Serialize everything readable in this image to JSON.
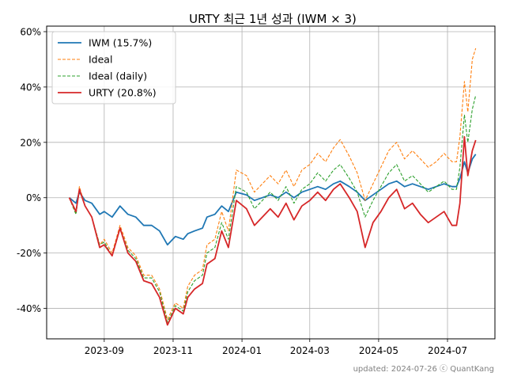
{
  "chart_data": {
    "type": "line",
    "title": "URTY 최근 1년 성과 (IWM × 3)",
    "xlabel": "",
    "ylabel": "",
    "x_tick_labels": [
      "2023-09",
      "2023-11",
      "2024-01",
      "2024-03",
      "2024-05",
      "2024-07"
    ],
    "y_tick_labels": [
      "-40%",
      "-20%",
      "0%",
      "20%",
      "40%",
      "60%"
    ],
    "ylim": [
      -51,
      62
    ],
    "grid": true,
    "legend_position": "upper-left",
    "series": [
      {
        "name": "IWM (15.7%)",
        "color": "#1f77b4",
        "linestyle": "solid",
        "points": [
          [
            "2023-08-01",
            0
          ],
          [
            "2023-08-07",
            -2
          ],
          [
            "2023-08-10",
            2
          ],
          [
            "2023-08-15",
            -1
          ],
          [
            "2023-08-21",
            -2
          ],
          [
            "2023-08-28",
            -6
          ],
          [
            "2023-09-01",
            -5
          ],
          [
            "2023-09-08",
            -7
          ],
          [
            "2023-09-15",
            -3
          ],
          [
            "2023-09-22",
            -6
          ],
          [
            "2023-09-29",
            -7
          ],
          [
            "2023-10-06",
            -10
          ],
          [
            "2023-10-13",
            -10
          ],
          [
            "2023-10-20",
            -12
          ],
          [
            "2023-10-27",
            -17
          ],
          [
            "2023-11-03",
            -14
          ],
          [
            "2023-11-10",
            -15
          ],
          [
            "2023-11-14",
            -13
          ],
          [
            "2023-11-20",
            -12
          ],
          [
            "2023-11-27",
            -11
          ],
          [
            "2023-12-01",
            -7
          ],
          [
            "2023-12-08",
            -6
          ],
          [
            "2023-12-14",
            -3
          ],
          [
            "2023-12-20",
            -5
          ],
          [
            "2023-12-27",
            2
          ],
          [
            "2024-01-05",
            1
          ],
          [
            "2024-01-12",
            -1
          ],
          [
            "2024-01-19",
            0
          ],
          [
            "2024-01-26",
            1
          ],
          [
            "2024-02-02",
            0
          ],
          [
            "2024-02-09",
            2
          ],
          [
            "2024-02-16",
            0
          ],
          [
            "2024-02-23",
            2
          ],
          [
            "2024-03-01",
            3
          ],
          [
            "2024-03-08",
            4
          ],
          [
            "2024-03-15",
            3
          ],
          [
            "2024-03-22",
            5
          ],
          [
            "2024-03-28",
            6
          ],
          [
            "2024-04-05",
            4
          ],
          [
            "2024-04-12",
            2
          ],
          [
            "2024-04-19",
            -1
          ],
          [
            "2024-04-26",
            1
          ],
          [
            "2024-05-03",
            3
          ],
          [
            "2024-05-10",
            5
          ],
          [
            "2024-05-17",
            6
          ],
          [
            "2024-05-24",
            4
          ],
          [
            "2024-05-31",
            5
          ],
          [
            "2024-06-07",
            4
          ],
          [
            "2024-06-14",
            3
          ],
          [
            "2024-06-21",
            4
          ],
          [
            "2024-06-28",
            5
          ],
          [
            "2024-07-05",
            4
          ],
          [
            "2024-07-09",
            4
          ],
          [
            "2024-07-12",
            7
          ],
          [
            "2024-07-16",
            13
          ],
          [
            "2024-07-19",
            9
          ],
          [
            "2024-07-23",
            14
          ],
          [
            "2024-07-26",
            15.7
          ]
        ]
      },
      {
        "name": "Ideal",
        "color": "#ff7f0e",
        "linestyle": "dashed",
        "points": [
          [
            "2023-08-01",
            0
          ],
          [
            "2023-08-07",
            -6
          ],
          [
            "2023-08-10",
            4
          ],
          [
            "2023-08-15",
            -3
          ],
          [
            "2023-08-21",
            -7
          ],
          [
            "2023-08-28",
            -17
          ],
          [
            "2023-09-01",
            -15
          ],
          [
            "2023-09-08",
            -20
          ],
          [
            "2023-09-15",
            -10
          ],
          [
            "2023-09-22",
            -18
          ],
          [
            "2023-09-29",
            -21
          ],
          [
            "2023-10-06",
            -28
          ],
          [
            "2023-10-13",
            -28
          ],
          [
            "2023-10-20",
            -33
          ],
          [
            "2023-10-27",
            -44
          ],
          [
            "2023-11-03",
            -38
          ],
          [
            "2023-11-10",
            -40
          ],
          [
            "2023-11-14",
            -32
          ],
          [
            "2023-11-20",
            -28
          ],
          [
            "2023-11-27",
            -26
          ],
          [
            "2023-12-01",
            -17
          ],
          [
            "2023-12-08",
            -15
          ],
          [
            "2023-12-14",
            -5
          ],
          [
            "2023-12-20",
            -12
          ],
          [
            "2023-12-27",
            10
          ],
          [
            "2024-01-05",
            8
          ],
          [
            "2024-01-12",
            2
          ],
          [
            "2024-01-19",
            5
          ],
          [
            "2024-01-26",
            8
          ],
          [
            "2024-02-02",
            5
          ],
          [
            "2024-02-09",
            10
          ],
          [
            "2024-02-16",
            4
          ],
          [
            "2024-02-23",
            10
          ],
          [
            "2024-03-01",
            12
          ],
          [
            "2024-03-08",
            16
          ],
          [
            "2024-03-15",
            13
          ],
          [
            "2024-03-22",
            18
          ],
          [
            "2024-03-28",
            21
          ],
          [
            "2024-04-05",
            15
          ],
          [
            "2024-04-12",
            9
          ],
          [
            "2024-04-19",
            -1
          ],
          [
            "2024-04-26",
            5
          ],
          [
            "2024-05-03",
            11
          ],
          [
            "2024-05-10",
            17
          ],
          [
            "2024-05-17",
            20
          ],
          [
            "2024-05-24",
            14
          ],
          [
            "2024-05-31",
            17
          ],
          [
            "2024-06-07",
            14
          ],
          [
            "2024-06-14",
            11
          ],
          [
            "2024-06-21",
            13
          ],
          [
            "2024-06-28",
            16
          ],
          [
            "2024-07-05",
            13
          ],
          [
            "2024-07-09",
            13
          ],
          [
            "2024-07-12",
            22
          ],
          [
            "2024-07-16",
            42
          ],
          [
            "2024-07-19",
            31
          ],
          [
            "2024-07-23",
            50
          ],
          [
            "2024-07-26",
            54
          ]
        ]
      },
      {
        "name": "Ideal (daily)",
        "color": "#2ca02c",
        "linestyle": "dashed",
        "points": [
          [
            "2023-08-01",
            0
          ],
          [
            "2023-08-07",
            -6
          ],
          [
            "2023-08-10",
            3
          ],
          [
            "2023-08-15",
            -3
          ],
          [
            "2023-08-21",
            -7
          ],
          [
            "2023-08-28",
            -17
          ],
          [
            "2023-09-01",
            -16
          ],
          [
            "2023-09-08",
            -21
          ],
          [
            "2023-09-15",
            -11
          ],
          [
            "2023-09-22",
            -19
          ],
          [
            "2023-09-29",
            -22
          ],
          [
            "2023-10-06",
            -29
          ],
          [
            "2023-10-13",
            -29
          ],
          [
            "2023-10-20",
            -34
          ],
          [
            "2023-10-27",
            -45
          ],
          [
            "2023-11-03",
            -39
          ],
          [
            "2023-11-10",
            -41
          ],
          [
            "2023-11-14",
            -34
          ],
          [
            "2023-11-20",
            -30
          ],
          [
            "2023-11-27",
            -28
          ],
          [
            "2023-12-01",
            -20
          ],
          [
            "2023-12-08",
            -18
          ],
          [
            "2023-12-14",
            -9
          ],
          [
            "2023-12-20",
            -15
          ],
          [
            "2023-12-27",
            4
          ],
          [
            "2024-01-05",
            2
          ],
          [
            "2024-01-12",
            -4
          ],
          [
            "2024-01-19",
            -1
          ],
          [
            "2024-01-26",
            2
          ],
          [
            "2024-02-02",
            -1
          ],
          [
            "2024-02-09",
            4
          ],
          [
            "2024-02-16",
            -2
          ],
          [
            "2024-02-23",
            3
          ],
          [
            "2024-03-01",
            5
          ],
          [
            "2024-03-08",
            9
          ],
          [
            "2024-03-15",
            6
          ],
          [
            "2024-03-22",
            10
          ],
          [
            "2024-03-28",
            12
          ],
          [
            "2024-04-05",
            7
          ],
          [
            "2024-04-12",
            2
          ],
          [
            "2024-04-19",
            -7
          ],
          [
            "2024-04-26",
            -1
          ],
          [
            "2024-05-03",
            4
          ],
          [
            "2024-05-10",
            9
          ],
          [
            "2024-05-17",
            12
          ],
          [
            "2024-05-24",
            6
          ],
          [
            "2024-05-31",
            8
          ],
          [
            "2024-06-07",
            5
          ],
          [
            "2024-06-14",
            2
          ],
          [
            "2024-06-21",
            4
          ],
          [
            "2024-06-28",
            6
          ],
          [
            "2024-07-05",
            3
          ],
          [
            "2024-07-09",
            3
          ],
          [
            "2024-07-12",
            11
          ],
          [
            "2024-07-16",
            30
          ],
          [
            "2024-07-19",
            20
          ],
          [
            "2024-07-23",
            32
          ],
          [
            "2024-07-26",
            37
          ]
        ]
      },
      {
        "name": "URTY (20.8%)",
        "color": "#d62728",
        "linestyle": "solid",
        "points": [
          [
            "2023-08-01",
            0
          ],
          [
            "2023-08-07",
            -5
          ],
          [
            "2023-08-10",
            3
          ],
          [
            "2023-08-15",
            -3
          ],
          [
            "2023-08-21",
            -7
          ],
          [
            "2023-08-28",
            -18
          ],
          [
            "2023-09-01",
            -17
          ],
          [
            "2023-09-08",
            -21
          ],
          [
            "2023-09-15",
            -11
          ],
          [
            "2023-09-22",
            -20
          ],
          [
            "2023-09-29",
            -23
          ],
          [
            "2023-10-06",
            -30
          ],
          [
            "2023-10-13",
            -31
          ],
          [
            "2023-10-20",
            -36
          ],
          [
            "2023-10-27",
            -46
          ],
          [
            "2023-11-03",
            -40
          ],
          [
            "2023-11-10",
            -42
          ],
          [
            "2023-11-14",
            -36
          ],
          [
            "2023-11-20",
            -33
          ],
          [
            "2023-11-27",
            -31
          ],
          [
            "2023-12-01",
            -24
          ],
          [
            "2023-12-08",
            -22
          ],
          [
            "2023-12-14",
            -12
          ],
          [
            "2023-12-20",
            -18
          ],
          [
            "2023-12-27",
            -1
          ],
          [
            "2024-01-05",
            -4
          ],
          [
            "2024-01-12",
            -10
          ],
          [
            "2024-01-19",
            -7
          ],
          [
            "2024-01-26",
            -4
          ],
          [
            "2024-02-02",
            -7
          ],
          [
            "2024-02-09",
            -2
          ],
          [
            "2024-02-16",
            -8
          ],
          [
            "2024-02-23",
            -3
          ],
          [
            "2024-03-01",
            -1
          ],
          [
            "2024-03-08",
            2
          ],
          [
            "2024-03-15",
            -1
          ],
          [
            "2024-03-22",
            3
          ],
          [
            "2024-03-28",
            5
          ],
          [
            "2024-04-05",
            0
          ],
          [
            "2024-04-12",
            -5
          ],
          [
            "2024-04-19",
            -18
          ],
          [
            "2024-04-26",
            -9
          ],
          [
            "2024-05-03",
            -5
          ],
          [
            "2024-05-10",
            0
          ],
          [
            "2024-05-17",
            3
          ],
          [
            "2024-05-24",
            -4
          ],
          [
            "2024-05-31",
            -2
          ],
          [
            "2024-06-07",
            -6
          ],
          [
            "2024-06-14",
            -9
          ],
          [
            "2024-06-21",
            -7
          ],
          [
            "2024-06-28",
            -5
          ],
          [
            "2024-07-05",
            -10
          ],
          [
            "2024-07-09",
            -10
          ],
          [
            "2024-07-12",
            -2
          ],
          [
            "2024-07-16",
            22
          ],
          [
            "2024-07-19",
            8
          ],
          [
            "2024-07-23",
            17
          ],
          [
            "2024-07-26",
            20.8
          ]
        ]
      }
    ],
    "footer": "updated: 2024-07-26 ⓒ QuantKang"
  }
}
